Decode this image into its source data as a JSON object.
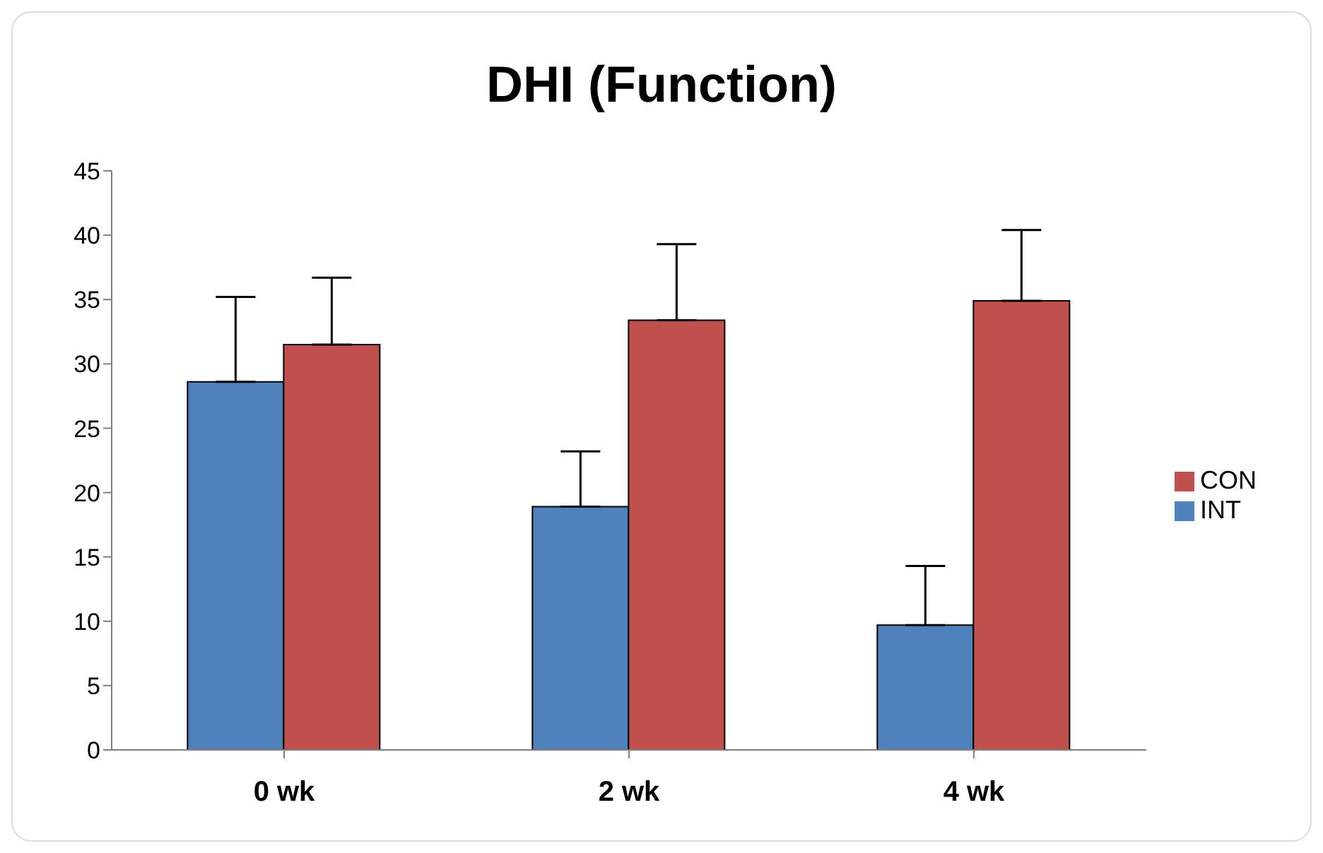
{
  "chart_data": {
    "type": "bar",
    "title": "DHI (Function)",
    "categories": [
      "0 wk",
      "2 wk",
      "4 wk"
    ],
    "series": [
      {
        "name": "INT",
        "color": "#4f81bd",
        "values": [
          28.6,
          18.9,
          9.7
        ],
        "errors": [
          [
            28.6,
            35.2
          ],
          [
            18.9,
            23.2
          ],
          [
            9.7,
            14.3
          ]
        ]
      },
      {
        "name": "CON",
        "color": "#c0504d",
        "values": [
          31.5,
          33.4,
          34.9
        ],
        "errors": [
          [
            31.5,
            36.7
          ],
          [
            33.4,
            39.3
          ],
          [
            34.9,
            40.4
          ]
        ]
      }
    ],
    "ylim": [
      0,
      45
    ],
    "yticks": [
      0,
      5,
      10,
      15,
      20,
      25,
      30,
      35,
      40,
      45
    ],
    "grid": false,
    "legend": "right"
  }
}
